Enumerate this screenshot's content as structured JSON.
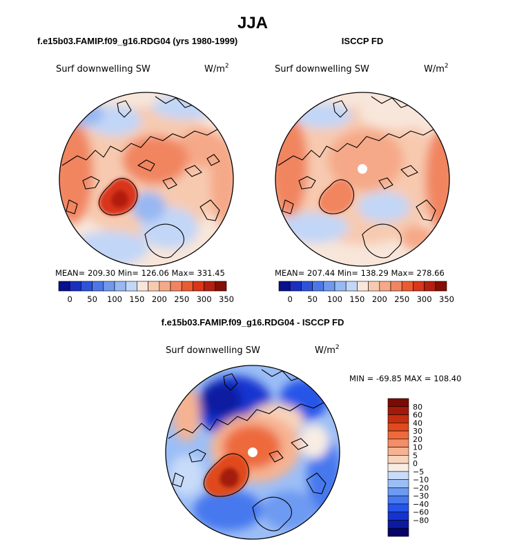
{
  "chart_data": {
    "type": "heatmap",
    "title": "JJA",
    "colors": {
      "main_scale": [
        "#08108c",
        "#1a2fbf",
        "#2f53d8",
        "#4d77e6",
        "#7099ed",
        "#97b8f2",
        "#c2d6f7",
        "#f8e6da",
        "#f7cab0",
        "#f5a988",
        "#f18561",
        "#ea5b32",
        "#d9361a",
        "#b31f10",
        "#830f06"
      ],
      "diff_scale": [
        "#04046a",
        "#0c1aa0",
        "#1434d0",
        "#2654e8",
        "#4678ee",
        "#6d9af2",
        "#9cbef6",
        "#c8dbf9",
        "#f8ece4",
        "#f8d4bd",
        "#f6b392",
        "#f38e66",
        "#ee6a3c",
        "#e04a1c",
        "#c62e10",
        "#a41a08",
        "#7a0b02"
      ],
      "coast": "#000000"
    },
    "panels": [
      {
        "heading": "f.e15b03.FAMIP.f09_g16.RDG04 (yrs 1980-1999)",
        "variable": "Surf downwelling SW",
        "units_base": "W/m",
        "units_exp": "2",
        "stats": {
          "mean_label": "MEAN=",
          "mean": "209.30",
          "min_label": "Min=",
          "min": "126.06",
          "max_label": "Max=",
          "max": "331.45"
        },
        "colorbar_ticks": [
          "0",
          "50",
          "100",
          "150",
          "200",
          "250",
          "300",
          "350"
        ]
      },
      {
        "heading": "ISCCP FD",
        "variable": "Surf downwelling SW",
        "units_base": "W/m",
        "units_exp": "2",
        "stats": {
          "mean_label": "MEAN=",
          "mean": "207.44",
          "min_label": "Min=",
          "min": "138.29",
          "max_label": "Max=",
          "max": "278.66"
        },
        "colorbar_ticks": [
          "0",
          "50",
          "100",
          "150",
          "200",
          "250",
          "300",
          "350"
        ]
      },
      {
        "heading": "f.e15b03.FAMIP.f09_g16.RDG04 - ISCCP FD",
        "variable": "Surf downwelling SW",
        "units_base": "W/m",
        "units_exp": "2",
        "stats_line": "MIN = -69.85 MAX = 108.40",
        "colorbar_ticks": [
          "80",
          "60",
          "40",
          "30",
          "20",
          "10",
          "5",
          "0",
          "−5",
          "−10",
          "−20",
          "−30",
          "−40",
          "−60",
          "−80"
        ]
      }
    ]
  }
}
